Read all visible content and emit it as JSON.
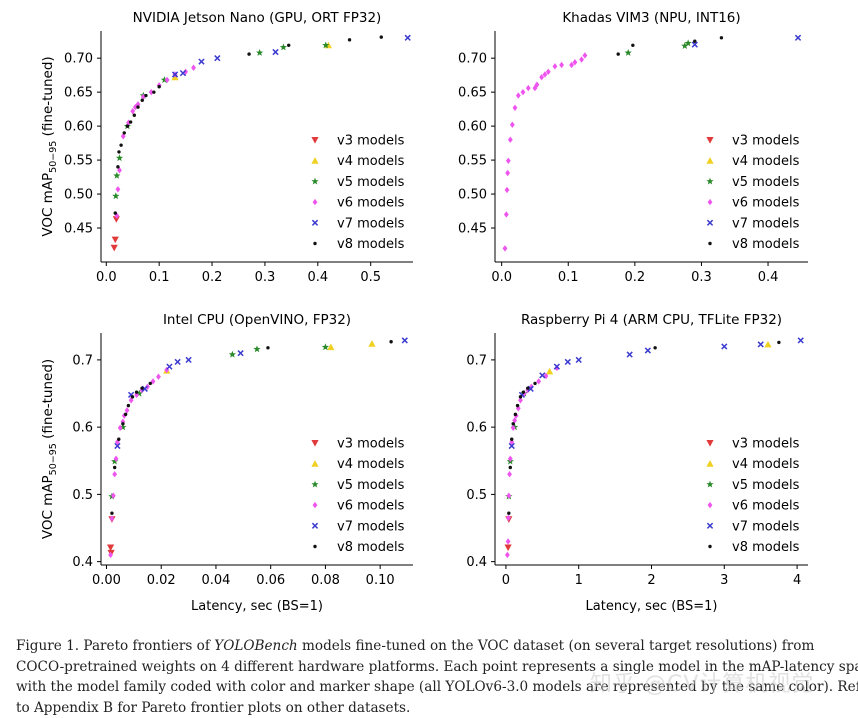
{
  "figure": {
    "caption": {
      "label": "Figure 1.",
      "line1_pre": "Pareto frontiers of",
      "line1_it": "YOLOBench",
      "line1_post": "models fine-tuned on the VOC dataset (on several target resolutions) from",
      "line2": "COCO-pretrained weights on 4 different hardware platforms. Each point represents a single model in the mAP-latency space,",
      "line3": "with the model family coded with color and marker shape (all YOLOv6-3.0 models are represented by the same color). Refer",
      "line4": "to Appendix B for Pareto frontier plots on other datasets."
    },
    "watermark": "知乎 @CV计算机视觉"
  },
  "colors": {
    "v3": "#e03a3a",
    "v4": "#f0d020",
    "v5": "#2a8a2a",
    "v6": "#ee55ee",
    "v7": "#3a3ad0",
    "v8": "#111111"
  },
  "chart_data": [
    {
      "type": "scatter",
      "title": "NVIDIA Jetson Nano (GPU, ORT FP32)",
      "xlabel": "",
      "ylabel": "VOC mAP50-95 (fine-tuned)",
      "xlim": [
        -0.01,
        0.58
      ],
      "ylim": [
        0.4,
        0.74
      ],
      "xticks": [
        0.0,
        0.1,
        0.2,
        0.3,
        0.4,
        0.5
      ],
      "xtick_labels": [
        "0.0",
        "0.1",
        "0.2",
        "0.3",
        "0.4",
        "0.5"
      ],
      "yticks": [
        0.45,
        0.5,
        0.55,
        0.6,
        0.65,
        0.7
      ],
      "ytick_labels": [
        "0.45",
        "0.50",
        "0.55",
        "0.60",
        "0.65",
        "0.70"
      ],
      "legend": [
        "v3 models",
        "v4 models",
        "v5 models",
        "v6 models",
        "v7 models",
        "v8 models"
      ],
      "legend_position": "lower-right",
      "series": [
        {
          "name": "v3 models",
          "points": [
            [
              0.015,
              0.421
            ],
            [
              0.017,
              0.433
            ],
            [
              0.019,
              0.463
            ]
          ]
        },
        {
          "name": "v4 models",
          "points": [
            [
              0.13,
              0.672
            ],
            [
              0.42,
              0.719
            ]
          ]
        },
        {
          "name": "v5 models",
          "points": [
            [
              0.018,
              0.497
            ],
            [
              0.02,
              0.527
            ],
            [
              0.025,
              0.553
            ],
            [
              0.04,
              0.6
            ],
            [
              0.07,
              0.645
            ],
            [
              0.11,
              0.668
            ],
            [
              0.29,
              0.708
            ],
            [
              0.335,
              0.716
            ],
            [
              0.415,
              0.719
            ]
          ]
        },
        {
          "name": "v6 models",
          "points": [
            [
              0.02,
              0.468
            ],
            [
              0.022,
              0.507
            ],
            [
              0.025,
              0.535
            ],
            [
              0.032,
              0.585
            ],
            [
              0.042,
              0.605
            ],
            [
              0.05,
              0.622
            ],
            [
              0.055,
              0.628
            ],
            [
              0.06,
              0.632
            ],
            [
              0.07,
              0.643
            ],
            [
              0.085,
              0.65
            ],
            [
              0.1,
              0.66
            ],
            [
              0.115,
              0.668
            ],
            [
              0.13,
              0.676
            ],
            [
              0.15,
              0.68
            ],
            [
              0.165,
              0.686
            ]
          ]
        },
        {
          "name": "v7 models",
          "points": [
            [
              0.13,
              0.676
            ],
            [
              0.145,
              0.678
            ],
            [
              0.18,
              0.695
            ],
            [
              0.21,
              0.7
            ],
            [
              0.32,
              0.709
            ],
            [
              0.57,
              0.73
            ]
          ]
        },
        {
          "name": "v8 models",
          "points": [
            [
              0.017,
              0.472
            ],
            [
              0.022,
              0.54
            ],
            [
              0.024,
              0.562
            ],
            [
              0.028,
              0.572
            ],
            [
              0.034,
              0.59
            ],
            [
              0.04,
              0.6
            ],
            [
              0.046,
              0.606
            ],
            [
              0.053,
              0.616
            ],
            [
              0.06,
              0.628
            ],
            [
              0.068,
              0.638
            ],
            [
              0.075,
              0.645
            ],
            [
              0.09,
              0.65
            ],
            [
              0.1,
              0.658
            ],
            [
              0.27,
              0.706
            ],
            [
              0.345,
              0.719
            ],
            [
              0.46,
              0.727
            ],
            [
              0.52,
              0.731
            ]
          ]
        }
      ]
    },
    {
      "type": "scatter",
      "title": "Khadas VIM3 (NPU, INT16)",
      "xlabel": "",
      "ylabel": "",
      "xlim": [
        -0.01,
        0.46
      ],
      "ylim": [
        0.4,
        0.74
      ],
      "xticks": [
        0.0,
        0.1,
        0.2,
        0.3,
        0.4
      ],
      "xtick_labels": [
        "0.0",
        "0.1",
        "0.2",
        "0.3",
        "0.4"
      ],
      "yticks": [
        0.45,
        0.5,
        0.55,
        0.6,
        0.65,
        0.7
      ],
      "ytick_labels": [
        "0.45",
        "0.50",
        "0.55",
        "0.60",
        "0.65",
        "0.70"
      ],
      "legend": [
        "v3 models",
        "v4 models",
        "v5 models",
        "v6 models",
        "v7 models",
        "v8 models"
      ],
      "legend_position": "lower-right",
      "series": [
        {
          "name": "v3 models",
          "points": []
        },
        {
          "name": "v4 models",
          "points": []
        },
        {
          "name": "v5 models",
          "points": [
            [
              0.19,
              0.708
            ],
            [
              0.275,
              0.718
            ],
            [
              0.28,
              0.722
            ]
          ]
        },
        {
          "name": "v6 models",
          "points": [
            [
              0.005,
              0.42
            ],
            [
              0.007,
              0.47
            ],
            [
              0.008,
              0.506
            ],
            [
              0.009,
              0.531
            ],
            [
              0.01,
              0.549
            ],
            [
              0.013,
              0.58
            ],
            [
              0.016,
              0.602
            ],
            [
              0.02,
              0.627
            ],
            [
              0.025,
              0.645
            ],
            [
              0.032,
              0.65
            ],
            [
              0.04,
              0.656
            ],
            [
              0.05,
              0.656
            ],
            [
              0.053,
              0.661
            ],
            [
              0.06,
              0.672
            ],
            [
              0.065,
              0.676
            ],
            [
              0.07,
              0.68
            ],
            [
              0.08,
              0.688
            ],
            [
              0.09,
              0.69
            ],
            [
              0.105,
              0.69
            ],
            [
              0.11,
              0.694
            ],
            [
              0.12,
              0.698
            ],
            [
              0.125,
              0.704
            ]
          ]
        },
        {
          "name": "v7 models",
          "points": [
            [
              0.29,
              0.72
            ],
            [
              0.445,
              0.73
            ]
          ]
        },
        {
          "name": "v8 models",
          "points": [
            [
              0.175,
              0.706
            ],
            [
              0.197,
              0.719
            ],
            [
              0.29,
              0.725
            ],
            [
              0.33,
              0.73
            ]
          ]
        }
      ]
    },
    {
      "type": "scatter",
      "title": "Intel CPU (OpenVINO, FP32)",
      "xlabel": "Latency, sec (BS=1)",
      "ylabel": "VOC mAP50-95 (fine-tuned)",
      "xlim": [
        -0.002,
        0.112
      ],
      "ylim": [
        0.395,
        0.74
      ],
      "xticks": [
        0.0,
        0.02,
        0.04,
        0.06,
        0.08,
        0.1
      ],
      "xtick_labels": [
        "0.00",
        "0.02",
        "0.04",
        "0.06",
        "0.08",
        "0.10"
      ],
      "yticks": [
        0.4,
        0.5,
        0.6,
        0.7
      ],
      "ytick_labels": [
        "0.4",
        "0.5",
        "0.6",
        "0.7"
      ],
      "legend": [
        "v3 models",
        "v4 models",
        "v5 models",
        "v6 models",
        "v7 models",
        "v8 models"
      ],
      "legend_position": "lower-right",
      "series": [
        {
          "name": "v3 models",
          "points": [
            [
              0.0015,
              0.421
            ],
            [
              0.0017,
              0.413
            ],
            [
              0.002,
              0.463
            ]
          ]
        },
        {
          "name": "v4 models",
          "points": [
            [
              0.022,
              0.684
            ],
            [
              0.082,
              0.719
            ],
            [
              0.097,
              0.724
            ]
          ]
        },
        {
          "name": "v5 models",
          "points": [
            [
              0.002,
              0.497
            ],
            [
              0.003,
              0.549
            ],
            [
              0.006,
              0.6
            ],
            [
              0.012,
              0.65
            ],
            [
              0.046,
              0.708
            ],
            [
              0.055,
              0.716
            ],
            [
              0.08,
              0.719
            ]
          ]
        },
        {
          "name": "v6 models",
          "points": [
            [
              0.0015,
              0.41
            ],
            [
              0.002,
              0.464
            ],
            [
              0.0025,
              0.498
            ],
            [
              0.003,
              0.53
            ],
            [
              0.0035,
              0.553
            ],
            [
              0.004,
              0.578
            ],
            [
              0.005,
              0.599
            ],
            [
              0.006,
              0.608
            ],
            [
              0.0065,
              0.617
            ],
            [
              0.0075,
              0.625
            ],
            [
              0.009,
              0.64
            ],
            [
              0.011,
              0.648
            ],
            [
              0.013,
              0.655
            ],
            [
              0.015,
              0.66
            ],
            [
              0.017,
              0.668
            ],
            [
              0.019,
              0.675
            ],
            [
              0.022,
              0.685
            ]
          ]
        },
        {
          "name": "v7 models",
          "points": [
            [
              0.004,
              0.572
            ],
            [
              0.009,
              0.648
            ],
            [
              0.014,
              0.657
            ],
            [
              0.023,
              0.69
            ],
            [
              0.026,
              0.697
            ],
            [
              0.03,
              0.7
            ],
            [
              0.049,
              0.71
            ],
            [
              0.109,
              0.729
            ]
          ]
        },
        {
          "name": "v8 models",
          "points": [
            [
              0.002,
              0.472
            ],
            [
              0.003,
              0.54
            ],
            [
              0.0045,
              0.582
            ],
            [
              0.006,
              0.605
            ],
            [
              0.007,
              0.619
            ],
            [
              0.008,
              0.632
            ],
            [
              0.0095,
              0.645
            ],
            [
              0.011,
              0.652
            ],
            [
              0.013,
              0.658
            ],
            [
              0.016,
              0.665
            ],
            [
              0.059,
              0.718
            ],
            [
              0.104,
              0.727
            ]
          ]
        }
      ]
    },
    {
      "type": "scatter",
      "title": "Raspberry Pi 4 (ARM CPU, TFLite FP32)",
      "xlabel": "Latency, sec (BS=1)",
      "ylabel": "",
      "xlim": [
        -0.15,
        4.15
      ],
      "ylim": [
        0.395,
        0.74
      ],
      "xticks": [
        0,
        1,
        2,
        3,
        4
      ],
      "xtick_labels": [
        "0",
        "1",
        "2",
        "3",
        "4"
      ],
      "yticks": [
        0.4,
        0.5,
        0.6,
        0.7
      ],
      "ytick_labels": [
        "0.4",
        "0.5",
        "0.6",
        "0.7"
      ],
      "legend": [
        "v3 models",
        "v4 models",
        "v5 models",
        "v6 models",
        "v7 models",
        "v8 models"
      ],
      "legend_position": "lower-right",
      "series": [
        {
          "name": "v3 models",
          "points": [
            [
              0.03,
              0.421
            ],
            [
              0.04,
              0.463
            ]
          ]
        },
        {
          "name": "v4 models",
          "points": [
            [
              0.6,
              0.683
            ],
            [
              3.6,
              0.723
            ]
          ]
        },
        {
          "name": "v5 models",
          "points": [
            [
              0.04,
              0.497
            ],
            [
              0.06,
              0.549
            ],
            [
              0.12,
              0.6
            ],
            [
              0.25,
              0.65
            ]
          ]
        },
        {
          "name": "v6 models",
          "points": [
            [
              0.02,
              0.41
            ],
            [
              0.03,
              0.43
            ],
            [
              0.035,
              0.465
            ],
            [
              0.04,
              0.498
            ],
            [
              0.05,
              0.53
            ],
            [
              0.06,
              0.553
            ],
            [
              0.08,
              0.578
            ],
            [
              0.1,
              0.599
            ],
            [
              0.12,
              0.61
            ],
            [
              0.14,
              0.617
            ],
            [
              0.17,
              0.628
            ],
            [
              0.2,
              0.64
            ],
            [
              0.25,
              0.65
            ],
            [
              0.3,
              0.655
            ],
            [
              0.35,
              0.66
            ],
            [
              0.45,
              0.668
            ],
            [
              0.55,
              0.676
            ],
            [
              0.7,
              0.688
            ]
          ]
        },
        {
          "name": "v7 models",
          "points": [
            [
              0.08,
              0.572
            ],
            [
              0.22,
              0.648
            ],
            [
              0.34,
              0.657
            ],
            [
              0.5,
              0.677
            ],
            [
              0.7,
              0.69
            ],
            [
              0.85,
              0.697
            ],
            [
              1.0,
              0.7
            ],
            [
              1.7,
              0.708
            ],
            [
              1.95,
              0.714
            ],
            [
              3.0,
              0.72
            ],
            [
              3.5,
              0.723
            ],
            [
              4.05,
              0.729
            ]
          ]
        },
        {
          "name": "v8 models",
          "points": [
            [
              0.04,
              0.472
            ],
            [
              0.06,
              0.54
            ],
            [
              0.08,
              0.582
            ],
            [
              0.1,
              0.605
            ],
            [
              0.13,
              0.619
            ],
            [
              0.16,
              0.632
            ],
            [
              0.2,
              0.645
            ],
            [
              0.24,
              0.652
            ],
            [
              0.3,
              0.658
            ],
            [
              0.4,
              0.665
            ],
            [
              2.05,
              0.718
            ],
            [
              3.75,
              0.726
            ]
          ]
        }
      ]
    }
  ]
}
